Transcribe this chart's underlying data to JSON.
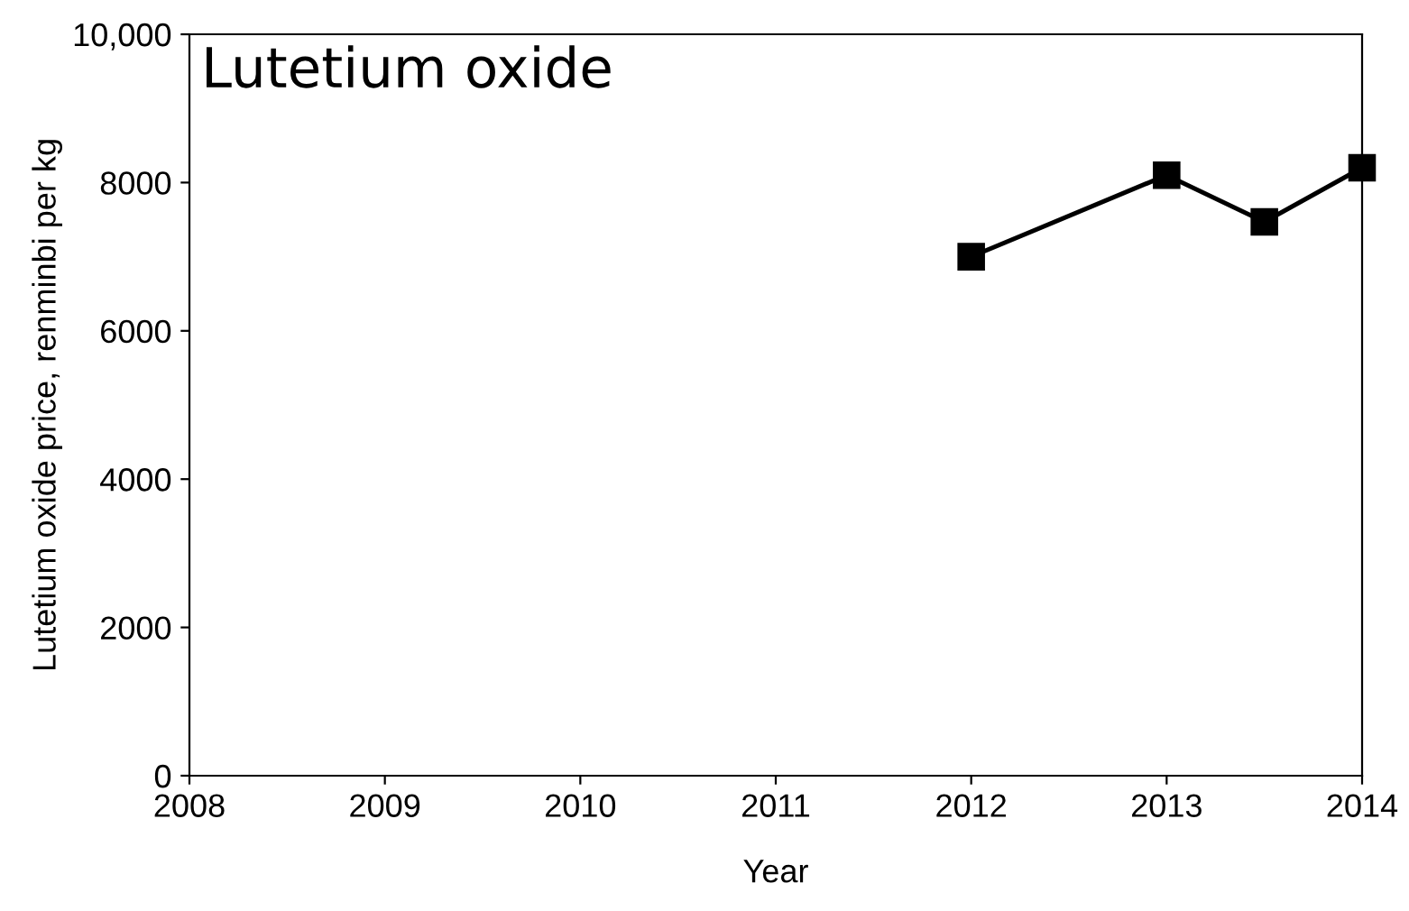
{
  "chart_data": {
    "type": "line",
    "title": "Lutetium oxide",
    "xlabel": "Year",
    "ylabel": "Lutetium oxide price, renminbi per kg",
    "x": [
      2012,
      2013,
      2013.5,
      2014
    ],
    "series": [
      {
        "color": "#000000",
        "values": [
          7000,
          8100,
          7470,
          8200
        ]
      }
    ],
    "xlim": [
      2008,
      2014
    ],
    "xticks": [
      2008,
      2009,
      2010,
      2011,
      2012,
      2013,
      2014
    ],
    "ylim": [
      0,
      10000
    ],
    "yticks": [
      0,
      2000,
      4000,
      6000,
      8000,
      {
        "value": 10000,
        "label": "10,000"
      }
    ],
    "marker": "square",
    "line_style": "solid",
    "grid": false,
    "legend": false
  }
}
